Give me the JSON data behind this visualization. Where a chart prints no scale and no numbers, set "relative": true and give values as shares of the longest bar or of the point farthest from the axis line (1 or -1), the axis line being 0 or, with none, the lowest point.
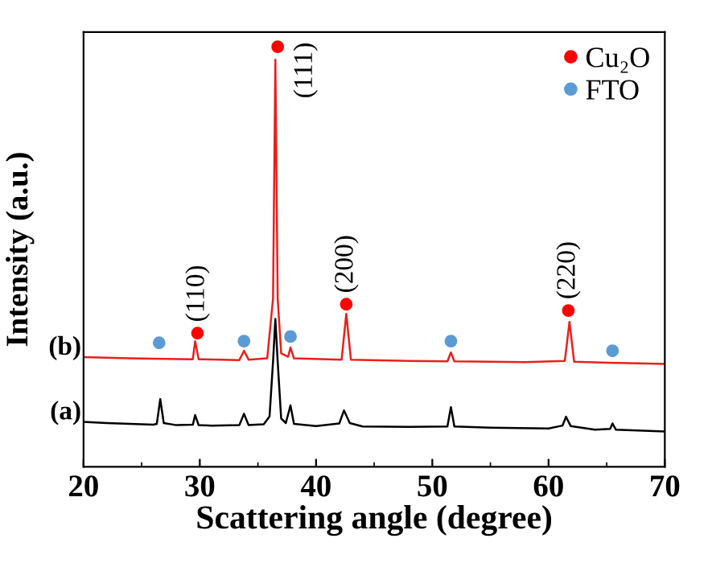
{
  "chart_data": {
    "type": "line",
    "relative": true,
    "xlabel": "Scattering angle (degree)",
    "ylabel": "Intensity (a.u.)",
    "xlim": [
      20,
      70
    ],
    "xticks": [
      20,
      30,
      40,
      50,
      60,
      70
    ],
    "legend": "top right",
    "tick_labels": "x",
    "series": [
      {
        "name": "(b)",
        "color": "#e8201c",
        "x": [
          20,
          24,
          26,
          29.4,
          29.6,
          29.9,
          33.4,
          33.8,
          34.2,
          35.8,
          36.3,
          36.5,
          36.7,
          37.0,
          37.6,
          37.8,
          38.1,
          42.2,
          42.6,
          43.0,
          48,
          51.3,
          51.6,
          51.9,
          58,
          61.4,
          61.8,
          62.2,
          66,
          70
        ],
        "values": [
          0.261,
          0.258,
          0.257,
          0.256,
          0.299,
          0.256,
          0.254,
          0.276,
          0.255,
          0.258,
          0.4,
          0.969,
          0.4,
          0.27,
          0.262,
          0.284,
          0.258,
          0.255,
          0.364,
          0.255,
          0.252,
          0.251,
          0.272,
          0.251,
          0.249,
          0.252,
          0.345,
          0.25,
          0.247,
          0.245
        ]
      },
      {
        "name": "(a)",
        "color": "#000000",
        "x": [
          20,
          22,
          24,
          26,
          26.3,
          26.6,
          26.9,
          28,
          29.4,
          29.6,
          29.9,
          31,
          33.4,
          33.8,
          34.2,
          35.5,
          36.0,
          36.3,
          36.5,
          36.7,
          37.0,
          37.4,
          37.8,
          38.1,
          40,
          42.0,
          42.4,
          42.9,
          44,
          48,
          51.3,
          51.6,
          51.9,
          55,
          60,
          61.2,
          61.5,
          61.9,
          64,
          65.3,
          65.5,
          65.8,
          70
        ],
        "values": [
          0.107,
          0.104,
          0.102,
          0.1,
          0.102,
          0.161,
          0.104,
          0.099,
          0.1,
          0.123,
          0.099,
          0.098,
          0.099,
          0.126,
          0.099,
          0.101,
          0.12,
          0.25,
          0.352,
          0.25,
          0.115,
          0.104,
          0.146,
          0.102,
          0.097,
          0.103,
          0.134,
          0.104,
          0.096,
          0.095,
          0.096,
          0.142,
          0.096,
          0.093,
          0.091,
          0.098,
          0.119,
          0.097,
          0.088,
          0.09,
          0.103,
          0.088,
          0.084
        ]
      },
      {
        "name": "Cu₂O",
        "type": "scatter",
        "marker": "circle",
        "color": "#ff0000",
        "x": [
          29.8,
          36.7,
          42.6,
          61.7
        ],
        "values": [
          0.318,
          1.0,
          0.387,
          0.372
        ]
      },
      {
        "name": "FTO",
        "type": "scatter",
        "marker": "circle",
        "color": "#5b9bd5",
        "x": [
          26.5,
          33.8,
          37.8,
          51.6,
          65.5
        ],
        "values": [
          0.295,
          0.299,
          0.31,
          0.299,
          0.276
        ]
      }
    ],
    "annotations": [
      {
        "text": "(110)",
        "x": 29.8,
        "y": 0.318
      },
      {
        "text": "(111)",
        "x": 36.7,
        "y": 1.0
      },
      {
        "text": "(200)",
        "x": 42.6,
        "y": 0.387
      },
      {
        "text": "(220)",
        "x": 61.7,
        "y": 0.372
      }
    ]
  }
}
